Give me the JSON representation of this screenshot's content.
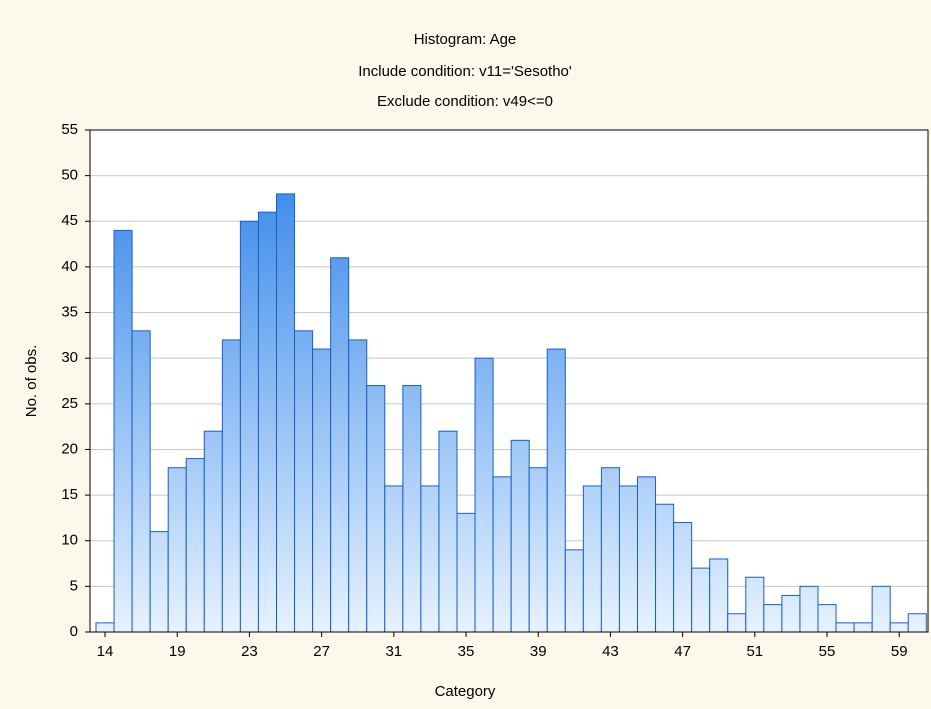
{
  "chart_data": {
    "type": "bar",
    "title": "Histogram: Age",
    "subtitle": [
      "Include condition: v11='Sesotho'",
      "Exclude condition: v49<=0"
    ],
    "x_label": "Category",
    "y_label": "No. of obs.",
    "categories": [
      "14",
      null,
      null,
      null,
      "19",
      null,
      null,
      null,
      "23",
      null,
      null,
      null,
      "27",
      null,
      null,
      null,
      "31",
      null,
      null,
      null,
      "35",
      null,
      null,
      null,
      "39",
      null,
      null,
      null,
      "43",
      null,
      null,
      null,
      "47",
      null,
      null,
      null,
      "51",
      null,
      null,
      null,
      "55",
      null,
      null,
      null,
      "59",
      null
    ],
    "values": [
      1,
      44,
      33,
      11,
      18,
      19,
      22,
      32,
      45,
      46,
      48,
      33,
      31,
      41,
      32,
      27,
      16,
      27,
      16,
      22,
      13,
      30,
      17,
      21,
      18,
      31,
      9,
      16,
      18,
      16,
      17,
      14,
      12,
      7,
      8,
      2,
      6,
      3,
      4,
      5,
      3,
      1,
      1,
      5,
      1,
      2
    ],
    "color": "#2a7fe8",
    "ylim": [
      0,
      55
    ],
    "yticks": [
      0,
      5,
      10,
      15,
      20,
      25,
      30,
      35,
      40,
      45,
      50,
      55
    ],
    "grid": true
  }
}
